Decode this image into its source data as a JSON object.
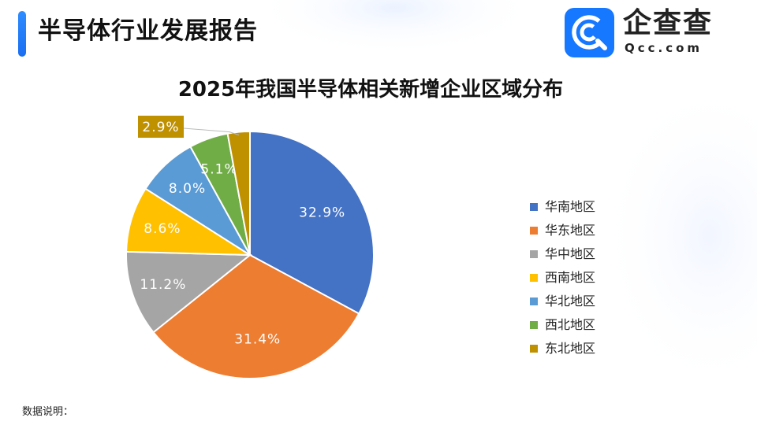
{
  "header": {
    "title": "半导体行业发展报告"
  },
  "brand": {
    "name": "企查查",
    "domain": "Qcc.com",
    "color": "#1677ff"
  },
  "footnote": "数据说明：",
  "chart_data": {
    "type": "pie",
    "title": "2025年我国半导体相关新增企业区域分布",
    "legend_position": "right",
    "start_angle": "12 o'clock, clockwise",
    "slices": [
      {
        "name": "华南地区",
        "value": 32.9,
        "label": "32.9%",
        "color": "#4472c4"
      },
      {
        "name": "华东地区",
        "value": 31.4,
        "label": "31.4%",
        "color": "#ed7d31"
      },
      {
        "name": "华中地区",
        "value": 11.2,
        "label": "11.2%",
        "color": "#a5a5a5"
      },
      {
        "name": "西南地区",
        "value": 8.6,
        "label": "8.6%",
        "color": "#ffc000"
      },
      {
        "name": "华北地区",
        "value": 8.0,
        "label": "8.0%",
        "color": "#5b9bd5"
      },
      {
        "name": "西北地区",
        "value": 5.1,
        "label": "5.1%",
        "color": "#70ad47"
      },
      {
        "name": "东北地区",
        "value": 2.9,
        "label": "2.9%",
        "color": "#bf9000"
      }
    ]
  }
}
